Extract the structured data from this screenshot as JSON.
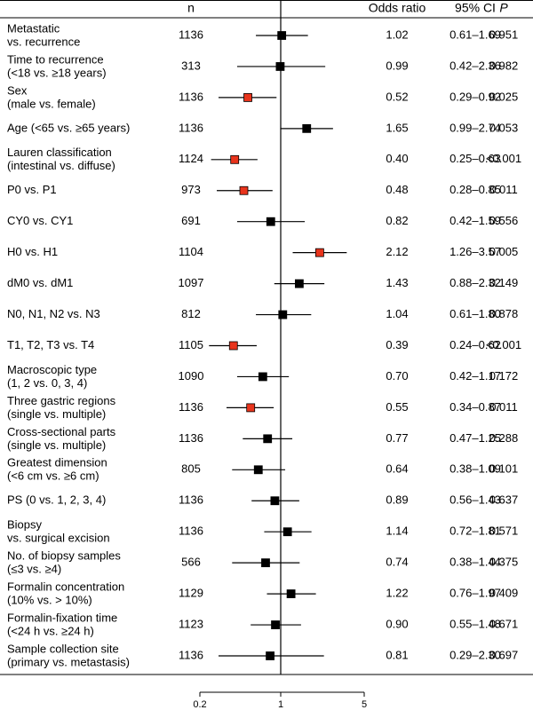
{
  "chart_data": {
    "type": "forest",
    "x_scale": "log",
    "reference_value": 1,
    "headers": {
      "n": "n",
      "odds_ratio": "Odds ratio",
      "ci": "95% CI",
      "p": "P"
    },
    "x_ticks": [
      "0.2",
      "1",
      "5"
    ],
    "significant_color": "#e8341c",
    "default_color": "#000000",
    "rows": [
      {
        "label": [
          "Metastatic",
          "vs. recurrence"
        ],
        "n": "1136",
        "or": 1.02,
        "or_text": "1.02",
        "lo": 0.61,
        "hi": 1.69,
        "ci_text": "0.61–1.69",
        "p": "0.951",
        "significant": false
      },
      {
        "label": [
          "Time to recurrence",
          "(<18 vs. ≥18 years)"
        ],
        "n": "313",
        "or": 0.99,
        "or_text": "0.99",
        "lo": 0.42,
        "hi": 2.36,
        "ci_text": "0.42–2.36",
        "p": "0.982",
        "significant": false
      },
      {
        "label": [
          "Sex",
          "(male vs. female)"
        ],
        "n": "1136",
        "or": 0.52,
        "or_text": "0.52",
        "lo": 0.29,
        "hi": 0.92,
        "ci_text": "0.29–0.92",
        "p": "0.025",
        "significant": true
      },
      {
        "label": [
          "Age (<65 vs. ≥65 years)"
        ],
        "n": "1136",
        "or": 1.65,
        "or_text": "1.65",
        "lo": 0.99,
        "hi": 2.74,
        "ci_text": "0.99–2.74",
        "p": "0.053",
        "significant": false
      },
      {
        "label": [
          "Lauren classification",
          "(intestinal vs. diffuse)"
        ],
        "n": "1124",
        "or": 0.4,
        "or_text": "0.40",
        "lo": 0.25,
        "hi": 0.63,
        "ci_text": "0.25–0.63",
        "p": "<0.001",
        "significant": true
      },
      {
        "label": [
          "P0 vs. P1"
        ],
        "n": "973",
        "or": 0.48,
        "or_text": "0.48",
        "lo": 0.28,
        "hi": 0.85,
        "ci_text": "0.28–0.85",
        "p": "0.011",
        "significant": true
      },
      {
        "label": [
          "CY0 vs. CY1"
        ],
        "n": "691",
        "or": 0.82,
        "or_text": "0.82",
        "lo": 0.42,
        "hi": 1.59,
        "ci_text": "0.42–1.59",
        "p": "0.556",
        "significant": false
      },
      {
        "label": [
          "H0 vs. H1"
        ],
        "n": "1104",
        "or": 2.12,
        "or_text": "2.12",
        "lo": 1.26,
        "hi": 3.57,
        "ci_text": "1.26–3.57",
        "p": "0.005",
        "significant": true
      },
      {
        "label": [
          "dM0 vs. dM1"
        ],
        "n": "1097",
        "or": 1.43,
        "or_text": "1.43",
        "lo": 0.88,
        "hi": 2.32,
        "ci_text": "0.88–2.32",
        "p": "0.149",
        "significant": false
      },
      {
        "label": [
          "N0, N1, N2 vs. N3"
        ],
        "n": "812",
        "or": 1.04,
        "or_text": "1.04",
        "lo": 0.61,
        "hi": 1.8,
        "ci_text": "0.61–1.80",
        "p": "0.878",
        "significant": false
      },
      {
        "label": [
          "T1, T2, T3 vs. T4"
        ],
        "n": "1105",
        "or": 0.39,
        "or_text": "0.39",
        "lo": 0.24,
        "hi": 0.62,
        "ci_text": "0.24–0.62",
        "p": "<0.001",
        "significant": true
      },
      {
        "label": [
          "Macroscopic type",
          "(1, 2 vs. 0, 3, 4)"
        ],
        "n": "1090",
        "or": 0.7,
        "or_text": "0.70",
        "lo": 0.42,
        "hi": 1.17,
        "ci_text": "0.42–1.17",
        "p": "0.172",
        "significant": false
      },
      {
        "label": [
          "Three gastric regions",
          "(single vs. multiple)"
        ],
        "n": "1136",
        "or": 0.55,
        "or_text": "0.55",
        "lo": 0.34,
        "hi": 0.87,
        "ci_text": "0.34–0.87",
        "p": "0.011",
        "significant": true
      },
      {
        "label": [
          "Cross-sectional parts",
          "(single vs. multiple)"
        ],
        "n": "1136",
        "or": 0.77,
        "or_text": "0.77",
        "lo": 0.47,
        "hi": 1.25,
        "ci_text": "0.47–1.25",
        "p": "0.288",
        "significant": false
      },
      {
        "label": [
          "Greatest dimension",
          " (<6 cm vs. ≥6 cm)"
        ],
        "n": "805",
        "or": 0.64,
        "or_text": "0.64",
        "lo": 0.38,
        "hi": 1.09,
        "ci_text": "0.38–1.09",
        "p": "0.101",
        "significant": false
      },
      {
        "label": [
          "PS (0 vs. 1, 2, 3, 4)"
        ],
        "n": "1136",
        "or": 0.89,
        "or_text": "0.89",
        "lo": 0.56,
        "hi": 1.43,
        "ci_text": "0.56–1.43",
        "p": "0.637",
        "significant": false
      },
      {
        "label": [
          "Biopsy",
          "vs. surgical excision"
        ],
        "n": "1136",
        "or": 1.14,
        "or_text": "1.14",
        "lo": 0.72,
        "hi": 1.81,
        "ci_text": "0.72–1.81",
        "p": "0.571",
        "significant": false
      },
      {
        "label": [
          "No. of biopsy samples",
          "(≤3 vs. ≥4)"
        ],
        "n": "566",
        "or": 0.74,
        "or_text": "0.74",
        "lo": 0.38,
        "hi": 1.44,
        "ci_text": "0.38–1.44",
        "p": "0.375",
        "significant": false
      },
      {
        "label": [
          "Formalin concentration",
          "(10% vs. > 10%)"
        ],
        "n": "1129",
        "or": 1.22,
        "or_text": "1.22",
        "lo": 0.76,
        "hi": 1.97,
        "ci_text": "0.76–1.97",
        "p": "0.409",
        "significant": false
      },
      {
        "label": [
          "Formalin-fixation time",
          "(<24 h vs. ≥24 h)"
        ],
        "n": "1123",
        "or": 0.9,
        "or_text": "0.90",
        "lo": 0.55,
        "hi": 1.48,
        "ci_text": "0.55–1.48",
        "p": "0.671",
        "significant": false
      },
      {
        "label": [
          "Sample collection site",
          "(primary vs. metastasis)"
        ],
        "n": "1136",
        "or": 0.81,
        "or_text": "0.81",
        "lo": 0.29,
        "hi": 2.3,
        "ci_text": "0.29–2.30",
        "p": "0.697",
        "significant": false
      }
    ]
  }
}
